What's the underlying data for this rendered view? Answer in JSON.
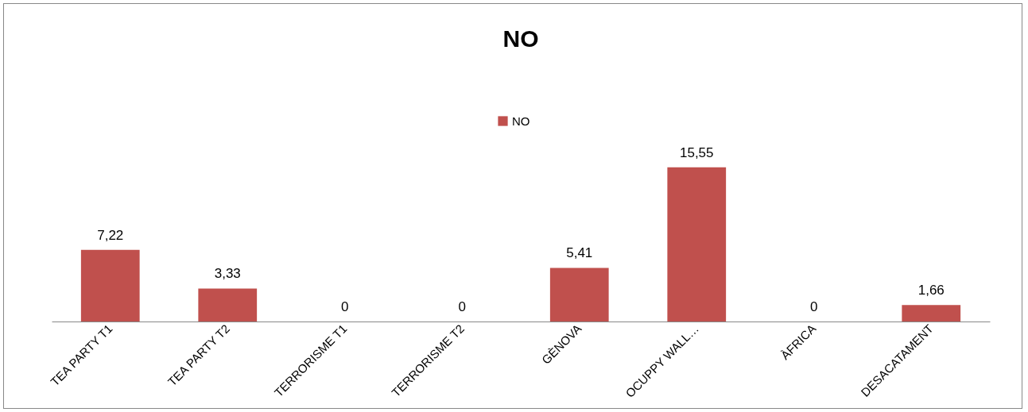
{
  "chart_data": {
    "type": "bar",
    "title": "NO",
    "categories": [
      "TEA PARTY T1",
      "TEA PARTY T2",
      "TERRORISME T1",
      "TERRORISME T2",
      "GÈNOVA",
      "OCUPPY WALL…",
      "ÀFRICA",
      "DESACATAMENT"
    ],
    "series": [
      {
        "name": "NO",
        "color": "#c0504d",
        "values": [
          7.22,
          3.33,
          0,
          0,
          5.41,
          15.55,
          0,
          1.66
        ],
        "value_labels": [
          "7,22",
          "3,33",
          "0",
          "0",
          "5,41",
          "15,55",
          "0",
          "1,66"
        ]
      }
    ],
    "legend": "top",
    "grid": false
  }
}
